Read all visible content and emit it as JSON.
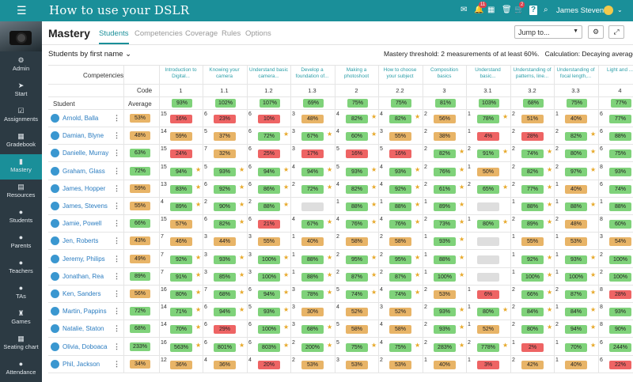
{
  "topbar": {
    "title": "How to use your DSLR",
    "user": "James Stevens",
    "badge1": "11",
    "badge2": "2",
    "menu_icon": "hamburger-icon",
    "search_icon": "search-icon"
  },
  "sidebar": {
    "items": [
      {
        "label": "Admin",
        "icon": "⚙"
      },
      {
        "label": "Start",
        "icon": "➤"
      },
      {
        "label": "Assignments",
        "icon": "☑"
      },
      {
        "label": "Gradebook",
        "icon": "▦"
      },
      {
        "label": "Mastery",
        "icon": "▮"
      },
      {
        "label": "Resources",
        "icon": "▤"
      },
      {
        "label": "Students",
        "icon": "●"
      },
      {
        "label": "Parents",
        "icon": "●"
      },
      {
        "label": "Teachers",
        "icon": "●"
      },
      {
        "label": "TAs",
        "icon": "●"
      },
      {
        "label": "Games",
        "icon": "♜"
      },
      {
        "label": "Seating chart",
        "icon": "▦"
      },
      {
        "label": "Attendance",
        "icon": "●"
      }
    ]
  },
  "header": {
    "title": "Mastery",
    "tabs": [
      "Students",
      "Competencies",
      "Coverage",
      "Rules",
      "Options"
    ],
    "jump": "Jump to..."
  },
  "subbar": {
    "sort": "Students by first name",
    "threshold": "Mastery threshold: 2 measurements of at least 60%.",
    "calc": "Calculation: Decaying average"
  },
  "table": {
    "competencies_label": "Competencies",
    "code_label": "Code",
    "student_label": "Student",
    "average_label": "Average",
    "competencies": [
      {
        "name": "Introduction to Digital...",
        "code": "1"
      },
      {
        "name": "Knowing your camera",
        "code": "1.1"
      },
      {
        "name": "Understand basic camera...",
        "code": "1.2"
      },
      {
        "name": "Develop a foundation of...",
        "code": "1.3"
      },
      {
        "name": "Making a photoshoot",
        "code": "2"
      },
      {
        "name": "How to choose your subject",
        "code": "2.2"
      },
      {
        "name": "Composition basics",
        "code": "3"
      },
      {
        "name": "Understand basic...",
        "code": "3.1"
      },
      {
        "name": "Understanding of patterns, line...",
        "code": "3.2"
      },
      {
        "name": "Understanding of focal length,...",
        "code": "3.3"
      },
      {
        "name": "Light and ...",
        "code": "4"
      }
    ],
    "header_row": [
      "93%",
      "102%",
      "107%",
      "69%",
      "75%",
      "75%",
      "81%",
      "103%",
      "68%",
      "75%",
      "77%"
    ],
    "rows": [
      {
        "name": "Arnold, Balla",
        "avg": "53%",
        "c": [
          [
            "15",
            "16%"
          ],
          [
            "6",
            "23%"
          ],
          [
            "6",
            "10%"
          ],
          [
            "3",
            "48%"
          ],
          [
            "4",
            "82%"
          ],
          [
            "4",
            "82%"
          ],
          [
            "2",
            "56%"
          ],
          [
            "1",
            "78%"
          ],
          [
            "2",
            "51%"
          ],
          [
            "1",
            "40%"
          ],
          [
            "6",
            "77%"
          ]
        ]
      },
      {
        "name": "Damian, Blyne",
        "avg": "48%",
        "c": [
          [
            "14",
            "59%"
          ],
          [
            "5",
            "37%"
          ],
          [
            "6",
            "72%"
          ],
          [
            "3",
            "67%"
          ],
          [
            "4",
            "60%"
          ],
          [
            "3",
            "55%"
          ],
          [
            "2",
            "38%"
          ],
          [
            "1",
            "4%"
          ],
          [
            "2",
            "28%"
          ],
          [
            "2",
            "82%"
          ],
          [
            "6",
            "88%"
          ]
        ]
      },
      {
        "name": "Danielle, Murray",
        "avg": "63%",
        "c": [
          [
            "15",
            "24%"
          ],
          [
            "7",
            "32%"
          ],
          [
            "6",
            "25%"
          ],
          [
            "3",
            "17%"
          ],
          [
            "5",
            "16%"
          ],
          [
            "5",
            "16%"
          ],
          [
            "2",
            "82%"
          ],
          [
            "2",
            "91%"
          ],
          [
            "2",
            "74%"
          ],
          [
            "2",
            "80%"
          ],
          [
            "6",
            "75%"
          ]
        ]
      },
      {
        "name": "Graham, Glass",
        "avg": "72%",
        "c": [
          [
            "15",
            "94%"
          ],
          [
            "5",
            "93%"
          ],
          [
            "6",
            "94%"
          ],
          [
            "4",
            "94%"
          ],
          [
            "5",
            "93%"
          ],
          [
            "4",
            "93%"
          ],
          [
            "2",
            "76%"
          ],
          [
            "1",
            "50%"
          ],
          [
            "2",
            "82%"
          ],
          [
            "2",
            "97%"
          ],
          [
            "8",
            "93%"
          ]
        ]
      },
      {
        "name": "James, Hopper",
        "avg": "59%",
        "c": [
          [
            "13",
            "83%"
          ],
          [
            "6",
            "92%"
          ],
          [
            "6",
            "86%"
          ],
          [
            "2",
            "72%"
          ],
          [
            "4",
            "82%"
          ],
          [
            "4",
            "92%"
          ],
          [
            "2",
            "61%"
          ],
          [
            "2",
            "65%"
          ],
          [
            "2",
            "77%"
          ],
          [
            "1",
            "40%"
          ],
          [
            "6",
            "74%"
          ]
        ]
      },
      {
        "name": "James, Stevens",
        "avg": "55%",
        "c": [
          [
            "4",
            "89%"
          ],
          [
            "2",
            "90%"
          ],
          [
            "2",
            "88%"
          ],
          [
            "",
            "e"
          ],
          [
            "1",
            "88%"
          ],
          [
            "1",
            "88%"
          ],
          [
            "1",
            "89%"
          ],
          [
            "",
            "e"
          ],
          [
            "1",
            "88%"
          ],
          [
            "1",
            "88%"
          ],
          [
            "1",
            "88%"
          ]
        ]
      },
      {
        "name": "Jamie, Powell",
        "avg": "66%",
        "c": [
          [
            "15",
            "57%"
          ],
          [
            "6",
            "82%"
          ],
          [
            "6",
            "21%"
          ],
          [
            "4",
            "67%"
          ],
          [
            "4",
            "76%"
          ],
          [
            "4",
            "76%"
          ],
          [
            "2",
            "73%"
          ],
          [
            "1",
            "80%"
          ],
          [
            "2",
            "89%"
          ],
          [
            "2",
            "48%"
          ],
          [
            "8",
            "60%"
          ]
        ]
      },
      {
        "name": "Jen, Roberts",
        "avg": "43%",
        "c": [
          [
            "7",
            "46%"
          ],
          [
            "3",
            "44%"
          ],
          [
            "3",
            "55%"
          ],
          [
            "1",
            "40%"
          ],
          [
            "2",
            "58%"
          ],
          [
            "2",
            "58%"
          ],
          [
            "1",
            "93%"
          ],
          [
            "",
            "e"
          ],
          [
            "1",
            "55%"
          ],
          [
            "1",
            "53%"
          ],
          [
            "3",
            "54%"
          ]
        ]
      },
      {
        "name": "Jeremy, Philips",
        "avg": "49%",
        "c": [
          [
            "7",
            "92%"
          ],
          [
            "3",
            "93%"
          ],
          [
            "3",
            "100%"
          ],
          [
            "1",
            "88%"
          ],
          [
            "2",
            "95%"
          ],
          [
            "2",
            "95%"
          ],
          [
            "1",
            "88%"
          ],
          [
            "",
            "e"
          ],
          [
            "1",
            "92%"
          ],
          [
            "1",
            "93%"
          ],
          [
            "2",
            "100%"
          ]
        ]
      },
      {
        "name": "Jonathan, Rea",
        "avg": "89%",
        "c": [
          [
            "7",
            "91%"
          ],
          [
            "3",
            "85%"
          ],
          [
            "3",
            "100%"
          ],
          [
            "1",
            "88%"
          ],
          [
            "2",
            "87%"
          ],
          [
            "2",
            "87%"
          ],
          [
            "1",
            "100%"
          ],
          [
            "",
            "e"
          ],
          [
            "1",
            "100%"
          ],
          [
            "1",
            "100%"
          ],
          [
            "2",
            "100%"
          ]
        ]
      },
      {
        "name": "Ken, Sanders",
        "avg": "56%",
        "c": [
          [
            "16",
            "80%"
          ],
          [
            "7",
            "68%"
          ],
          [
            "6",
            "94%"
          ],
          [
            "3",
            "78%"
          ],
          [
            "5",
            "74%"
          ],
          [
            "4",
            "74%"
          ],
          [
            "2",
            "53%"
          ],
          [
            "1",
            "6%"
          ],
          [
            "2",
            "66%"
          ],
          [
            "2",
            "87%"
          ],
          [
            "8",
            "28%"
          ]
        ]
      },
      {
        "name": "Martin, Pappins",
        "avg": "72%",
        "c": [
          [
            "14",
            "71%"
          ],
          [
            "6",
            "94%"
          ],
          [
            "5",
            "93%"
          ],
          [
            "3",
            "30%"
          ],
          [
            "4",
            "52%"
          ],
          [
            "3",
            "52%"
          ],
          [
            "2",
            "93%"
          ],
          [
            "1",
            "80%"
          ],
          [
            "2",
            "84%"
          ],
          [
            "1",
            "84%"
          ],
          [
            "8",
            "93%"
          ]
        ]
      },
      {
        "name": "Natalie, Staton",
        "avg": "68%",
        "c": [
          [
            "14",
            "70%"
          ],
          [
            "6",
            "29%"
          ],
          [
            "6",
            "100%"
          ],
          [
            "3",
            "68%"
          ],
          [
            "5",
            "58%"
          ],
          [
            "4",
            "58%"
          ],
          [
            "2",
            "93%"
          ],
          [
            "1",
            "52%"
          ],
          [
            "2",
            "80%"
          ],
          [
            "2",
            "94%"
          ],
          [
            "8",
            "90%"
          ]
        ]
      },
      {
        "name": "Olivia, Doboaca",
        "avg": "233%",
        "c": [
          [
            "16",
            "563%"
          ],
          [
            "6",
            "801%"
          ],
          [
            "6",
            "803%"
          ],
          [
            "2",
            "200%"
          ],
          [
            "5",
            "75%"
          ],
          [
            "4",
            "75%"
          ],
          [
            "2",
            "283%"
          ],
          [
            "2",
            "778%"
          ],
          [
            "1",
            "2%"
          ],
          [
            "1",
            "70%"
          ],
          [
            "6",
            "244%"
          ]
        ]
      },
      {
        "name": "Phil, Jackson",
        "avg": "34%",
        "c": [
          [
            "12",
            "36%"
          ],
          [
            "4",
            "36%"
          ],
          [
            "4",
            "20%"
          ],
          [
            "2",
            "53%"
          ],
          [
            "3",
            "53%"
          ],
          [
            "2",
            "53%"
          ],
          [
            "1",
            "40%"
          ],
          [
            "1",
            "3%"
          ],
          [
            "2",
            "42%"
          ],
          [
            "1",
            "40%"
          ],
          [
            "6",
            "22%"
          ]
        ]
      }
    ]
  }
}
